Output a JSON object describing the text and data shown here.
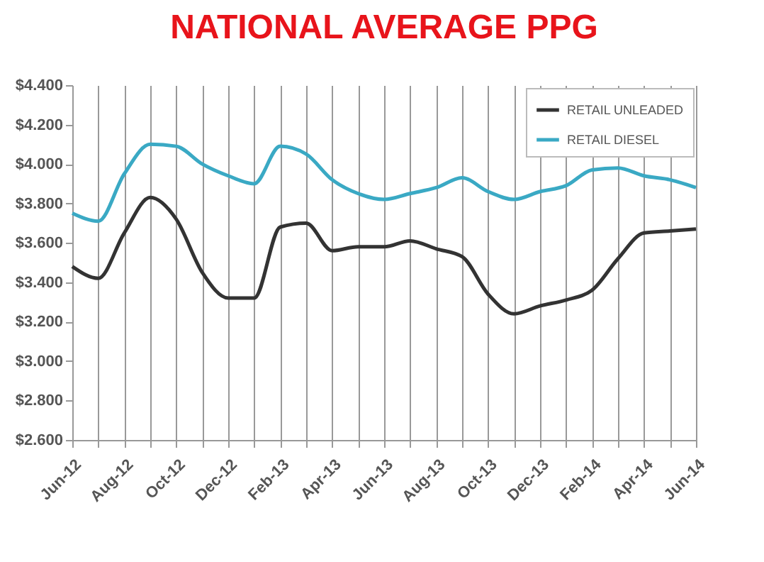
{
  "chart_data": {
    "type": "line",
    "title": "NATIONAL AVERAGE PPG",
    "categories": [
      "Jun-12",
      null,
      "Aug-12",
      null,
      "Oct-12",
      null,
      "Dec-12",
      null,
      "Feb-13",
      null,
      "Apr-13",
      null,
      "Jun-13",
      null,
      "Aug-13",
      null,
      "Oct-13",
      null,
      "Dec-13",
      null,
      "Feb-14",
      null,
      "Apr-14",
      null,
      "Jun-14"
    ],
    "series": [
      {
        "name": "RETAIL UNLEADED",
        "color": "#333333",
        "values": [
          3.48,
          3.42,
          3.65,
          3.83,
          3.72,
          3.45,
          3.32,
          3.32,
          3.68,
          3.7,
          3.56,
          3.58,
          3.58,
          3.61,
          3.57,
          3.53,
          3.34,
          3.24,
          3.28,
          3.31,
          3.36,
          3.52,
          3.65,
          3.66,
          3.67
        ]
      },
      {
        "name": "RETAIL DIESEL",
        "color": "#3aa9c4",
        "values": [
          3.75,
          3.71,
          3.95,
          4.1,
          4.09,
          4.0,
          3.94,
          3.9,
          4.09,
          4.05,
          3.92,
          3.85,
          3.82,
          3.85,
          3.88,
          3.93,
          3.86,
          3.82,
          3.86,
          3.89,
          3.97,
          3.98,
          3.94,
          3.92,
          3.88
        ]
      }
    ],
    "ylim": [
      2.6,
      4.4
    ],
    "yticks": [
      {
        "value": 2.6,
        "label": "$2.600"
      },
      {
        "value": 2.8,
        "label": "$2.800"
      },
      {
        "value": 3.0,
        "label": "$3.000"
      },
      {
        "value": 3.2,
        "label": "$3.200"
      },
      {
        "value": 3.4,
        "label": "$3.400"
      },
      {
        "value": 3.6,
        "label": "$3.600"
      },
      {
        "value": 3.8,
        "label": "$3.800"
      },
      {
        "value": 4.0,
        "label": "$4.000"
      },
      {
        "value": 4.2,
        "label": "$4.200"
      },
      {
        "value": 4.4,
        "label": "$4.400"
      }
    ],
    "grid": "x",
    "legend": "top right",
    "marker": "none",
    "line_style": "solid"
  }
}
